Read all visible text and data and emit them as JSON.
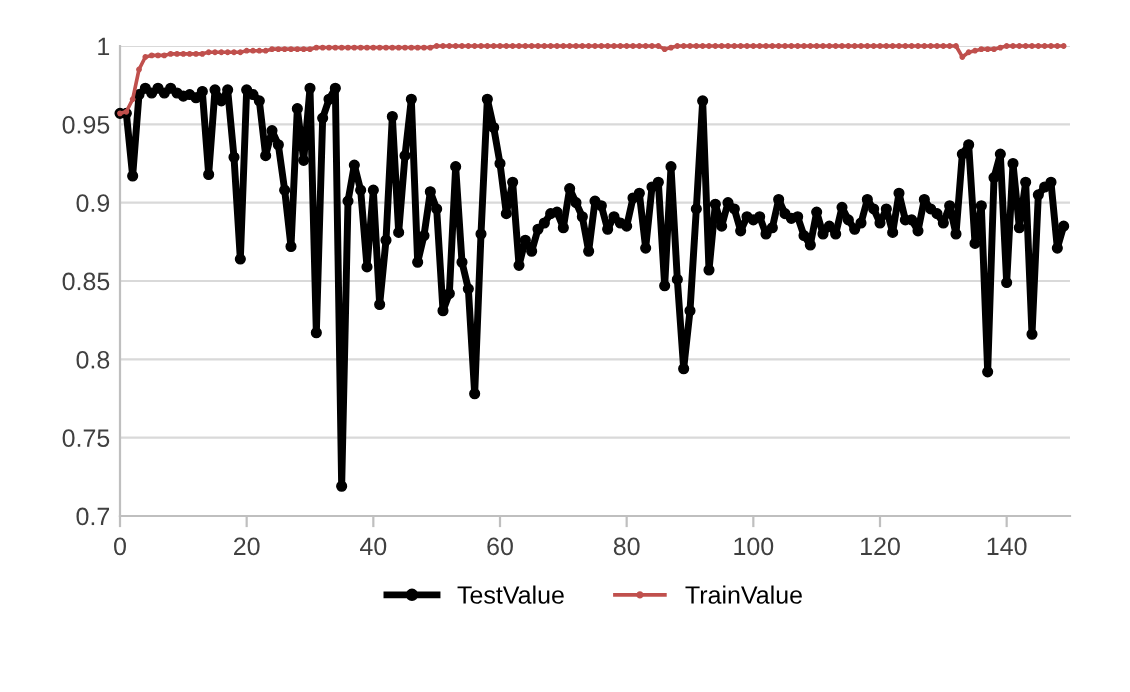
{
  "chart_data": {
    "type": "line",
    "x": [
      0,
      1,
      2,
      3,
      4,
      5,
      6,
      7,
      8,
      9,
      10,
      11,
      12,
      13,
      14,
      15,
      16,
      17,
      18,
      19,
      20,
      21,
      22,
      23,
      24,
      25,
      26,
      27,
      28,
      29,
      30,
      31,
      32,
      33,
      34,
      35,
      36,
      37,
      38,
      39,
      40,
      41,
      42,
      43,
      44,
      45,
      46,
      47,
      48,
      49,
      50,
      51,
      52,
      53,
      54,
      55,
      56,
      57,
      58,
      59,
      60,
      61,
      62,
      63,
      64,
      65,
      66,
      67,
      68,
      69,
      70,
      71,
      72,
      73,
      74,
      75,
      76,
      77,
      78,
      79,
      80,
      81,
      82,
      83,
      84,
      85,
      86,
      87,
      88,
      89,
      90,
      91,
      92,
      93,
      94,
      95,
      96,
      97,
      98,
      99,
      100,
      101,
      102,
      103,
      104,
      105,
      106,
      107,
      108,
      109,
      110,
      111,
      112,
      113,
      114,
      115,
      116,
      117,
      118,
      119,
      120,
      121,
      122,
      123,
      124,
      125,
      126,
      127,
      128,
      129,
      130,
      131,
      132,
      133,
      134,
      135,
      136,
      137,
      138,
      139,
      140,
      141,
      142,
      143,
      144,
      145,
      146,
      147,
      148,
      149
    ],
    "series": [
      {
        "name": "TestValue",
        "color": "#000000",
        "values": [
          0.957,
          0.957,
          0.917,
          0.969,
          0.973,
          0.97,
          0.973,
          0.97,
          0.973,
          0.97,
          0.968,
          0.969,
          0.967,
          0.971,
          0.918,
          0.972,
          0.965,
          0.972,
          0.929,
          0.864,
          0.972,
          0.969,
          0.965,
          0.93,
          0.946,
          0.937,
          0.908,
          0.872,
          0.96,
          0.927,
          0.973,
          0.817,
          0.954,
          0.966,
          0.973,
          0.719,
          0.901,
          0.924,
          0.908,
          0.859,
          0.908,
          0.835,
          0.876,
          0.955,
          0.881,
          0.93,
          0.966,
          0.862,
          0.879,
          0.907,
          0.896,
          0.831,
          0.842,
          0.923,
          0.862,
          0.845,
          0.778,
          0.88,
          0.966,
          0.948,
          0.925,
          0.893,
          0.913,
          0.86,
          0.876,
          0.869,
          0.883,
          0.887,
          0.893,
          0.894,
          0.884,
          0.909,
          0.9,
          0.891,
          0.869,
          0.901,
          0.898,
          0.883,
          0.891,
          0.887,
          0.885,
          0.903,
          0.906,
          0.871,
          0.91,
          0.913,
          0.847,
          0.923,
          0.851,
          0.794,
          0.831,
          0.896,
          0.965,
          0.857,
          0.899,
          0.885,
          0.9,
          0.896,
          0.882,
          0.891,
          0.889,
          0.891,
          0.88,
          0.884,
          0.902,
          0.893,
          0.89,
          0.891,
          0.879,
          0.873,
          0.894,
          0.88,
          0.885,
          0.88,
          0.897,
          0.889,
          0.883,
          0.887,
          0.902,
          0.896,
          0.887,
          0.896,
          0.881,
          0.906,
          0.889,
          0.889,
          0.882,
          0.902,
          0.896,
          0.893,
          0.887,
          0.898,
          0.88,
          0.931,
          0.937,
          0.874,
          0.898,
          0.792,
          0.916,
          0.931,
          0.849,
          0.925,
          0.884,
          0.913,
          0.816,
          0.905,
          0.91,
          0.913,
          0.871,
          0.885
        ]
      },
      {
        "name": "TrainValue",
        "color": "#c0504d",
        "values": [
          0.957,
          0.958,
          0.966,
          0.985,
          0.993,
          0.994,
          0.994,
          0.994,
          0.995,
          0.995,
          0.995,
          0.995,
          0.995,
          0.995,
          0.996,
          0.996,
          0.996,
          0.996,
          0.996,
          0.996,
          0.997,
          0.997,
          0.997,
          0.997,
          0.998,
          0.998,
          0.998,
          0.998,
          0.998,
          0.998,
          0.998,
          0.999,
          0.999,
          0.999,
          0.999,
          0.999,
          0.999,
          0.999,
          0.999,
          0.999,
          0.999,
          0.999,
          0.999,
          0.999,
          0.999,
          0.999,
          0.999,
          0.999,
          0.999,
          0.999,
          1.0,
          1.0,
          1.0,
          1.0,
          1.0,
          1.0,
          1.0,
          1.0,
          1.0,
          1.0,
          1.0,
          1.0,
          1.0,
          1.0,
          1.0,
          1.0,
          1.0,
          1.0,
          1.0,
          1.0,
          1.0,
          1.0,
          1.0,
          1.0,
          1.0,
          1.0,
          1.0,
          1.0,
          1.0,
          1.0,
          1.0,
          1.0,
          1.0,
          1.0,
          1.0,
          1.0,
          0.998,
          0.999,
          1.0,
          1.0,
          1.0,
          1.0,
          1.0,
          1.0,
          1.0,
          1.0,
          1.0,
          1.0,
          1.0,
          1.0,
          1.0,
          1.0,
          1.0,
          1.0,
          1.0,
          1.0,
          1.0,
          1.0,
          1.0,
          1.0,
          1.0,
          1.0,
          1.0,
          1.0,
          1.0,
          1.0,
          1.0,
          1.0,
          1.0,
          1.0,
          1.0,
          1.0,
          1.0,
          1.0,
          1.0,
          1.0,
          1.0,
          1.0,
          1.0,
          1.0,
          1.0,
          1.0,
          1.0,
          0.993,
          0.996,
          0.997,
          0.998,
          0.998,
          0.998,
          0.999,
          1.0,
          1.0,
          1.0,
          1.0,
          1.0,
          1.0,
          1.0,
          1.0,
          1.0,
          1.0
        ]
      }
    ],
    "xlim": [
      0,
      150
    ],
    "xticks": [
      0,
      20,
      40,
      60,
      80,
      100,
      120,
      140
    ],
    "ylim": [
      0.7,
      1.0
    ],
    "yticks": [
      0.7,
      0.75,
      0.8,
      0.85,
      0.9,
      0.95,
      1
    ],
    "grid": "y",
    "legend": "bottom",
    "marker": "circle",
    "line_style": "solid"
  }
}
